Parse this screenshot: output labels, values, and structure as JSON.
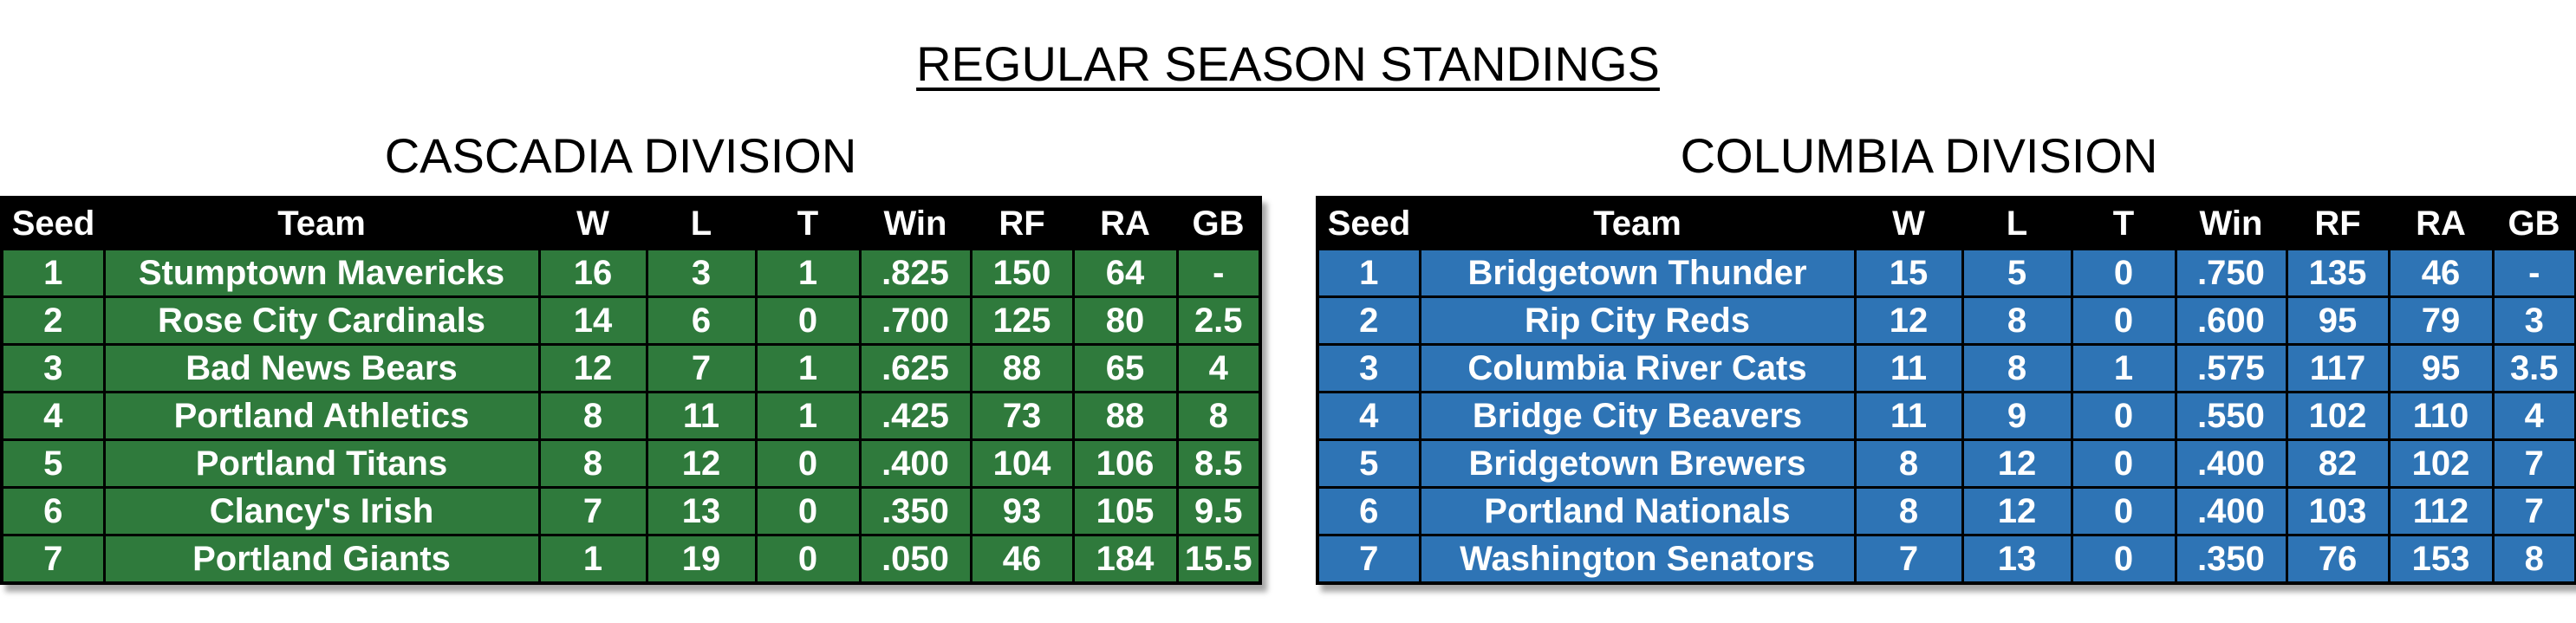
{
  "title": "REGULAR SEASON STANDINGS",
  "columns": [
    "Seed",
    "Team",
    "W",
    "L",
    "T",
    "Win",
    "RF",
    "RA",
    "GB"
  ],
  "divisions": [
    {
      "name": "CASCADIA DIVISION",
      "color": "#2f7a3c",
      "rows": [
        [
          "1",
          "Stumptown Mavericks",
          "16",
          "3",
          "1",
          ".825",
          "150",
          "64",
          "-"
        ],
        [
          "2",
          "Rose City Cardinals",
          "14",
          "6",
          "0",
          ".700",
          "125",
          "80",
          "2.5"
        ],
        [
          "3",
          "Bad News Bears",
          "12",
          "7",
          "1",
          ".625",
          "88",
          "65",
          "4"
        ],
        [
          "4",
          "Portland Athletics",
          "8",
          "11",
          "1",
          ".425",
          "73",
          "88",
          "8"
        ],
        [
          "5",
          "Portland Titans",
          "8",
          "12",
          "0",
          ".400",
          "104",
          "106",
          "8.5"
        ],
        [
          "6",
          "Clancy's Irish",
          "7",
          "13",
          "0",
          ".350",
          "93",
          "105",
          "9.5"
        ],
        [
          "7",
          "Portland Giants",
          "1",
          "19",
          "0",
          ".050",
          "46",
          "184",
          "15.5"
        ]
      ]
    },
    {
      "name": "COLUMBIA DIVISION",
      "color": "#2e74b5",
      "rows": [
        [
          "1",
          "Bridgetown Thunder",
          "15",
          "5",
          "0",
          ".750",
          "135",
          "46",
          "-"
        ],
        [
          "2",
          "Rip City Reds",
          "12",
          "8",
          "0",
          ".600",
          "95",
          "79",
          "3"
        ],
        [
          "3",
          "Columbia River Cats",
          "11",
          "8",
          "1",
          ".575",
          "117",
          "95",
          "3.5"
        ],
        [
          "4",
          "Bridge City Beavers",
          "11",
          "9",
          "0",
          ".550",
          "102",
          "110",
          "4"
        ],
        [
          "5",
          "Bridgetown Brewers",
          "8",
          "12",
          "0",
          ".400",
          "82",
          "102",
          "7"
        ],
        [
          "6",
          "Portland Nationals",
          "8",
          "12",
          "0",
          ".400",
          "103",
          "112",
          "7"
        ],
        [
          "7",
          "Washington Senators",
          "7",
          "13",
          "0",
          ".350",
          "76",
          "153",
          "8"
        ]
      ]
    }
  ]
}
